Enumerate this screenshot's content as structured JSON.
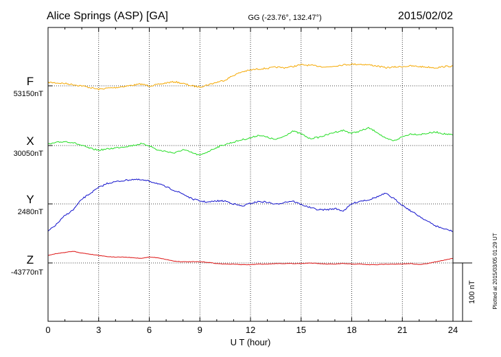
{
  "header": {
    "station": "Alice Springs (ASP)  [GA]",
    "coords": "GG (-23.76°, 132.47°)",
    "date": "2015/02/02"
  },
  "plotted_note": "Plotted at 2015/03/05 01:29 UT",
  "chart_data": {
    "type": "line",
    "xlabel": "U T (hour)",
    "xlim": [
      0,
      24
    ],
    "x_ticks": [
      "0",
      "3",
      "6",
      "9",
      "12",
      "15",
      "18",
      "21",
      "24"
    ],
    "scale_bar_label": "100 nT",
    "scale_bar_nT": 100,
    "sample_interval_hours": 0.5,
    "series": [
      {
        "name": "F",
        "baseline_label": "53150nT",
        "baseline_nT": 53150,
        "color": "#f5a800",
        "values": [
          53156,
          53155,
          53154,
          53152,
          53150,
          53147,
          53144,
          53146,
          53147,
          53149,
          53151,
          53153,
          53150,
          53152,
          53155,
          53157,
          53154,
          53150,
          53148,
          53152,
          53156,
          53160,
          53168,
          53174,
          53177,
          53179,
          53180,
          53182,
          53181,
          53183,
          53186,
          53185,
          53184,
          53182,
          53184,
          53186,
          53187,
          53187,
          53186,
          53184,
          53181,
          53182,
          53183,
          53184,
          53183,
          53182,
          53181,
          53183,
          53184
        ]
      },
      {
        "name": "X",
        "baseline_label": "30050nT",
        "baseline_nT": 30050,
        "color": "#22dd22",
        "values": [
          30052,
          30055,
          30057,
          30055,
          30050,
          30045,
          30042,
          30044,
          30046,
          30048,
          30050,
          30053,
          30050,
          30042,
          30040,
          30037,
          30043,
          30038,
          30033,
          30040,
          30047,
          30052,
          30056,
          30060,
          30063,
          30068,
          30064,
          30060,
          30066,
          30075,
          30070,
          30062,
          30064,
          30068,
          30073,
          30076,
          30071,
          30075,
          30080,
          30073,
          30062,
          30058,
          30065,
          30070,
          30069,
          30071,
          30073,
          30070,
          30068
        ]
      },
      {
        "name": "Y",
        "baseline_label": "2480nT",
        "baseline_nT": 2480,
        "color": "#1010cc",
        "values": [
          2433,
          2445,
          2460,
          2470,
          2488,
          2498,
          2508,
          2515,
          2518,
          2520,
          2522,
          2521,
          2519,
          2515,
          2509,
          2503,
          2497,
          2489,
          2485,
          2483,
          2485,
          2485,
          2480,
          2476,
          2481,
          2484,
          2483,
          2479,
          2483,
          2485,
          2479,
          2474,
          2470,
          2470,
          2472,
          2468,
          2480,
          2485,
          2487,
          2492,
          2498,
          2489,
          2478,
          2468,
          2459,
          2450,
          2442,
          2437,
          2433
        ]
      },
      {
        "name": "Z",
        "baseline_label": "-43770nT",
        "baseline_nT": -43770,
        "color": "#dd1111",
        "values": [
          -43757,
          -43754,
          -43752,
          -43750,
          -43753,
          -43755,
          -43757,
          -43759,
          -43760,
          -43760,
          -43761,
          -43762,
          -43760,
          -43761,
          -43764,
          -43767,
          -43768,
          -43768,
          -43768,
          -43769,
          -43771,
          -43772,
          -43772,
          -43773,
          -43773,
          -43772,
          -43772,
          -43771,
          -43771,
          -43771,
          -43771,
          -43770,
          -43771,
          -43772,
          -43772,
          -43771,
          -43772,
          -43772,
          -43773,
          -43773,
          -43772,
          -43772,
          -43772,
          -43771,
          -43773,
          -43771,
          -43768,
          -43765,
          -43762
        ]
      }
    ]
  }
}
